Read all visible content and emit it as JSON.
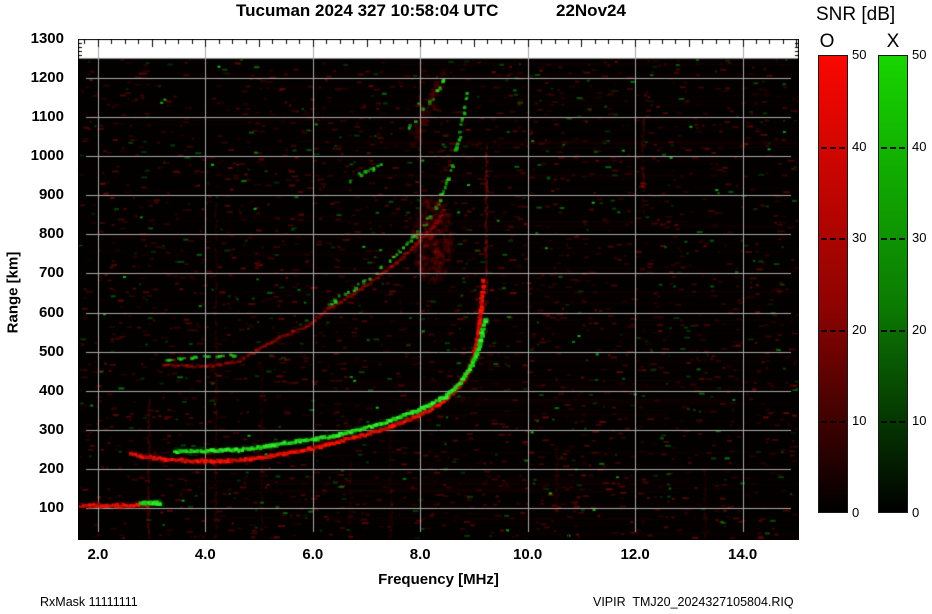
{
  "header": {
    "title": "Tucuman 2024 327 10:58:04 UTC",
    "date": "22Nov24"
  },
  "footer": {
    "left": "RxMask 11111111",
    "right": "VIPIR  TMJ20_2024327105804.RIQ"
  },
  "colorbar": {
    "title": "SNR [dB]",
    "o_label": "O",
    "x_label": "X",
    "max": 50,
    "min": 0,
    "ticks": [
      "50",
      "40",
      "30",
      "20",
      "10",
      "0"
    ],
    "dash_ticks": [
      40,
      30,
      20,
      10
    ],
    "o_stops": [
      "#fa0700",
      "#8d0300",
      "#000000"
    ],
    "x_stops": [
      "#17d500",
      "#0b7a02",
      "#000000"
    ]
  },
  "chart_data": {
    "type": "heatmap",
    "title": "Tucuman 2024 327 10:58:04 UTC 22Nov24",
    "xlabel": "Frequency [MHz]",
    "ylabel": "Range [km]",
    "xlim": [
      1.63,
      15.05
    ],
    "ylim": [
      18,
      1300
    ],
    "xticks": [
      2,
      4,
      6,
      8,
      10,
      12,
      14
    ],
    "xtick_labels": [
      "2.0",
      "4.0",
      "6.0",
      "8.0",
      "10.0",
      "12.0",
      "14.0"
    ],
    "yticks": [
      100,
      200,
      300,
      400,
      500,
      600,
      700,
      800,
      900,
      1000,
      1100,
      1200,
      1300
    ],
    "ytick_labels": [
      "100",
      "200",
      "300",
      "400",
      "500",
      "600",
      "700",
      "800",
      "900",
      "1000",
      "1100",
      "1200",
      "1300"
    ],
    "data_top_km": 1250,
    "grid": true,
    "grid_color": "#a8a8a8",
    "bg_color": "#030000",
    "o_color": "#e81204",
    "x_color": "#25dc20",
    "legend": "O = red (ordinary mode), X = green (extraordinary mode), SNR 0-50 dB",
    "traces": [
      {
        "name": "E-layer O",
        "mode": "O",
        "style": "solid",
        "points": [
          [
            1.66,
            104
          ],
          [
            1.9,
            106
          ],
          [
            2.15,
            105
          ],
          [
            2.45,
            106
          ],
          [
            2.75,
            107
          ],
          [
            3.0,
            108
          ]
        ]
      },
      {
        "name": "E-layer X",
        "mode": "X",
        "style": "blob",
        "points": [
          [
            2.82,
            112
          ],
          [
            3.0,
            113
          ],
          [
            3.18,
            111
          ]
        ]
      },
      {
        "name": "F 1-hop O",
        "mode": "O",
        "style": "solid",
        "points": [
          [
            2.6,
            240
          ],
          [
            2.85,
            231
          ],
          [
            3.21,
            225
          ],
          [
            3.71,
            220
          ],
          [
            4.27,
            220
          ],
          [
            4.83,
            225
          ],
          [
            5.39,
            236
          ],
          [
            5.95,
            251
          ],
          [
            6.32,
            264
          ],
          [
            6.88,
            284
          ],
          [
            7.44,
            307
          ],
          [
            8.0,
            338
          ],
          [
            8.37,
            366
          ],
          [
            8.65,
            399
          ],
          [
            8.84,
            433
          ],
          [
            8.97,
            473
          ],
          [
            9.06,
            525
          ],
          [
            9.12,
            586
          ],
          [
            9.16,
            645
          ],
          [
            9.18,
            685
          ]
        ]
      },
      {
        "name": "F 1-hop X",
        "mode": "X",
        "style": "solid",
        "points": [
          [
            3.43,
            243
          ],
          [
            3.99,
            246
          ],
          [
            4.64,
            248
          ],
          [
            5.2,
            259
          ],
          [
            5.76,
            271
          ],
          [
            6.32,
            282
          ],
          [
            6.88,
            300
          ],
          [
            7.44,
            323
          ],
          [
            8.0,
            351
          ],
          [
            8.46,
            384
          ],
          [
            8.74,
            417
          ],
          [
            8.93,
            456
          ],
          [
            9.08,
            504
          ],
          [
            9.17,
            550
          ],
          [
            9.22,
            585
          ]
        ]
      },
      {
        "name": "F 2-hop O",
        "mode": "O",
        "style": "faint",
        "points": [
          [
            3.25,
            465
          ],
          [
            3.9,
            463
          ],
          [
            4.3,
            466
          ],
          [
            4.65,
            478
          ],
          [
            5.0,
            506
          ],
          [
            5.45,
            540
          ],
          [
            5.9,
            565
          ],
          [
            6.26,
            607
          ],
          [
            6.88,
            658
          ],
          [
            7.44,
            714
          ],
          [
            7.81,
            760
          ],
          [
            8.09,
            798
          ],
          [
            8.31,
            829
          ],
          [
            8.45,
            870
          ]
        ]
      },
      {
        "name": "F 2-hop X dashes",
        "mode": "X",
        "style": "dashed",
        "points": [
          [
            3.3,
            478
          ],
          [
            3.75,
            484
          ],
          [
            4.2,
            488
          ],
          [
            4.6,
            490
          ]
        ]
      },
      {
        "name": "F 2-hop X upper",
        "mode": "X",
        "style": "dotted",
        "points": [
          [
            6.3,
            620
          ],
          [
            6.9,
            672
          ],
          [
            7.4,
            728
          ],
          [
            7.9,
            792
          ],
          [
            8.2,
            845
          ],
          [
            8.42,
            905
          ],
          [
            8.58,
            965
          ],
          [
            8.72,
            1040
          ],
          [
            8.82,
            1115
          ],
          [
            8.9,
            1170
          ]
        ]
      },
      {
        "name": "F 3-hop X",
        "mode": "X",
        "style": "dotted",
        "points": [
          [
            7.75,
            1062
          ],
          [
            7.95,
            1098
          ],
          [
            8.15,
            1132
          ],
          [
            8.33,
            1170
          ],
          [
            8.5,
            1208
          ]
        ]
      },
      {
        "name": "F 3-hop O diffuse",
        "mode": "O",
        "style": "diffuse",
        "points": [
          [
            7.85,
            1040
          ],
          [
            8.05,
            1090
          ],
          [
            8.25,
            1150
          ],
          [
            8.4,
            1210
          ]
        ]
      },
      {
        "name": "mid scatter X",
        "mode": "X",
        "style": "dotted",
        "points": [
          [
            6.7,
            940
          ],
          [
            7.0,
            962
          ],
          [
            7.4,
            985
          ]
        ]
      }
    ],
    "spread_blob": {
      "cx": 8.2,
      "cy": 790,
      "rx": 0.38,
      "ry": 115
    },
    "interference": [
      {
        "f": 2.95,
        "km": [
          18,
          380
        ],
        "a": 0.28
      },
      {
        "f": 4.2,
        "km": [
          18,
          880
        ],
        "a": 0.18
      },
      {
        "f": 5.05,
        "km": [
          18,
          480
        ],
        "a": 0.12
      },
      {
        "f": 6.7,
        "km": [
          18,
          230
        ],
        "a": 0.12
      },
      {
        "f": 7.45,
        "km": [
          18,
          300
        ],
        "a": 0.12
      },
      {
        "f": 8.0,
        "km": [
          980,
          1250
        ],
        "a": 0.22
      },
      {
        "f": 9.23,
        "km": [
          620,
          1030
        ],
        "a": 0.5
      },
      {
        "f": 10.55,
        "km": [
          90,
          260
        ],
        "a": 0.15
      },
      {
        "f": 12.15,
        "km": [
          860,
          1100
        ],
        "a": 0.25
      },
      {
        "f": 13.3,
        "km": [
          18,
          200
        ],
        "a": 0.16
      }
    ],
    "noise": {
      "seed": 42,
      "red_specks": 2600,
      "green_specks": 430,
      "bright_green": 45,
      "row_bands": 170
    }
  }
}
